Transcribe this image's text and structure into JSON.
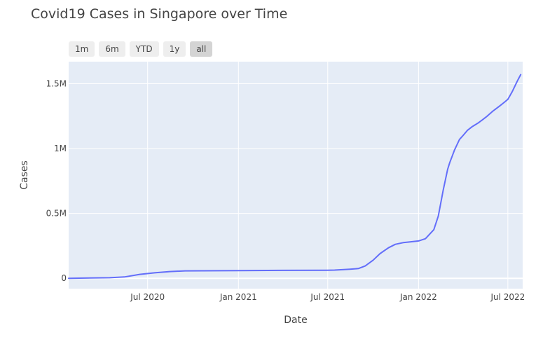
{
  "chart_data": {
    "type": "line",
    "title": "Covid19 Cases in Singapore over Time",
    "xlabel": "Date",
    "ylabel": "Cases",
    "range_buttons": [
      "1m",
      "6m",
      "YTD",
      "1y",
      "all"
    ],
    "active_button": "all",
    "xlim": [
      "2020-01-23",
      "2022-07-31"
    ],
    "ylim": [
      -80000,
      1670000
    ],
    "x_ticks": [
      {
        "date": "2020-07-01",
        "label": "Jul 2020"
      },
      {
        "date": "2021-01-01",
        "label": "Jan 2021"
      },
      {
        "date": "2021-07-01",
        "label": "Jul 2021"
      },
      {
        "date": "2022-01-01",
        "label": "Jan 2022"
      },
      {
        "date": "2022-07-01",
        "label": "Jul 2022"
      }
    ],
    "y_ticks": [
      {
        "value": 0,
        "label": "0"
      },
      {
        "value": 500000,
        "label": "0.5M"
      },
      {
        "value": 1000000,
        "label": "1M"
      },
      {
        "value": 1500000,
        "label": "1.5M"
      }
    ],
    "grid": true,
    "line_color": "#636efa",
    "plot_bg": "#e5ecf6",
    "series": [
      {
        "x": [
          "2020-01-23",
          "2020-04-15",
          "2020-05-15",
          "2020-06-15",
          "2020-07-15",
          "2020-08-15",
          "2020-09-15",
          "2020-12-31",
          "2021-03-31",
          "2021-06-30",
          "2021-07-15",
          "2021-08-15",
          "2021-09-01",
          "2021-09-15",
          "2021-10-01",
          "2021-10-15",
          "2021-11-01",
          "2021-11-15",
          "2021-12-01",
          "2021-12-15",
          "2022-01-01",
          "2022-01-15",
          "2022-02-01",
          "2022-02-10",
          "2022-02-20",
          "2022-03-01",
          "2022-03-05",
          "2022-03-10",
          "2022-03-15",
          "2022-03-20",
          "2022-03-25",
          "2022-04-01",
          "2022-04-10",
          "2022-04-20",
          "2022-05-01",
          "2022-05-10",
          "2022-05-20",
          "2022-06-01",
          "2022-06-15",
          "2022-06-25",
          "2022-07-01",
          "2022-07-10",
          "2022-07-20",
          "2022-07-27"
        ],
        "y": [
          0,
          4000,
          10000,
          30000,
          42000,
          52000,
          57000,
          59000,
          61000,
          62000,
          63000,
          70000,
          75000,
          95000,
          140000,
          190000,
          235000,
          262000,
          275000,
          280000,
          288000,
          305000,
          375000,
          480000,
          680000,
          840000,
          890000,
          940000,
          990000,
          1030000,
          1070000,
          1100000,
          1140000,
          1170000,
          1195000,
          1220000,
          1250000,
          1290000,
          1330000,
          1360000,
          1380000,
          1440000,
          1520000,
          1570000
        ]
      }
    ]
  }
}
